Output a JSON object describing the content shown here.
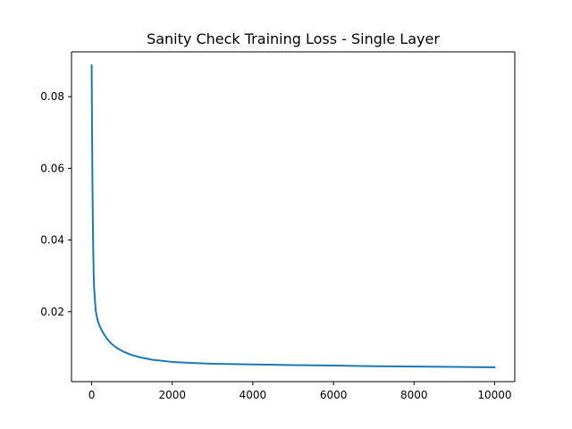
{
  "chart_data": {
    "type": "line",
    "title": "Sanity Check Training Loss - Single Layer",
    "xlabel": "",
    "ylabel": "",
    "xlim": [
      -500,
      10500
    ],
    "ylim": [
      0.0005,
      0.0925
    ],
    "x_ticks": [
      0,
      2000,
      4000,
      6000,
      8000,
      10000
    ],
    "x_tick_labels": [
      "0",
      "2000",
      "4000",
      "6000",
      "8000",
      "10000"
    ],
    "y_ticks": [
      0.02,
      0.04,
      0.06,
      0.08
    ],
    "y_tick_labels": [
      "0.02",
      "0.04",
      "0.06",
      "0.08"
    ],
    "grid": false,
    "legend": "none",
    "series": [
      {
        "color": "#1f77b4",
        "x": [
          0,
          10,
          20,
          30,
          40,
          50,
          60,
          80,
          100,
          130,
          160,
          200,
          250,
          300,
          400,
          500,
          600,
          700,
          800,
          1000,
          1200,
          1500,
          2000,
          2500,
          3000,
          4000,
          5000,
          6000,
          7000,
          8000,
          9000,
          10000
        ],
        "y": [
          0.0888,
          0.07,
          0.056,
          0.045,
          0.037,
          0.031,
          0.027,
          0.0235,
          0.0205,
          0.0185,
          0.0172,
          0.016,
          0.0148,
          0.0138,
          0.0122,
          0.011,
          0.0101,
          0.0094,
          0.0088,
          0.0079,
          0.0073,
          0.0066,
          0.006,
          0.0057,
          0.0055,
          0.0053,
          0.0051,
          0.005,
          0.0048,
          0.0047,
          0.0046,
          0.0045
        ]
      }
    ]
  }
}
